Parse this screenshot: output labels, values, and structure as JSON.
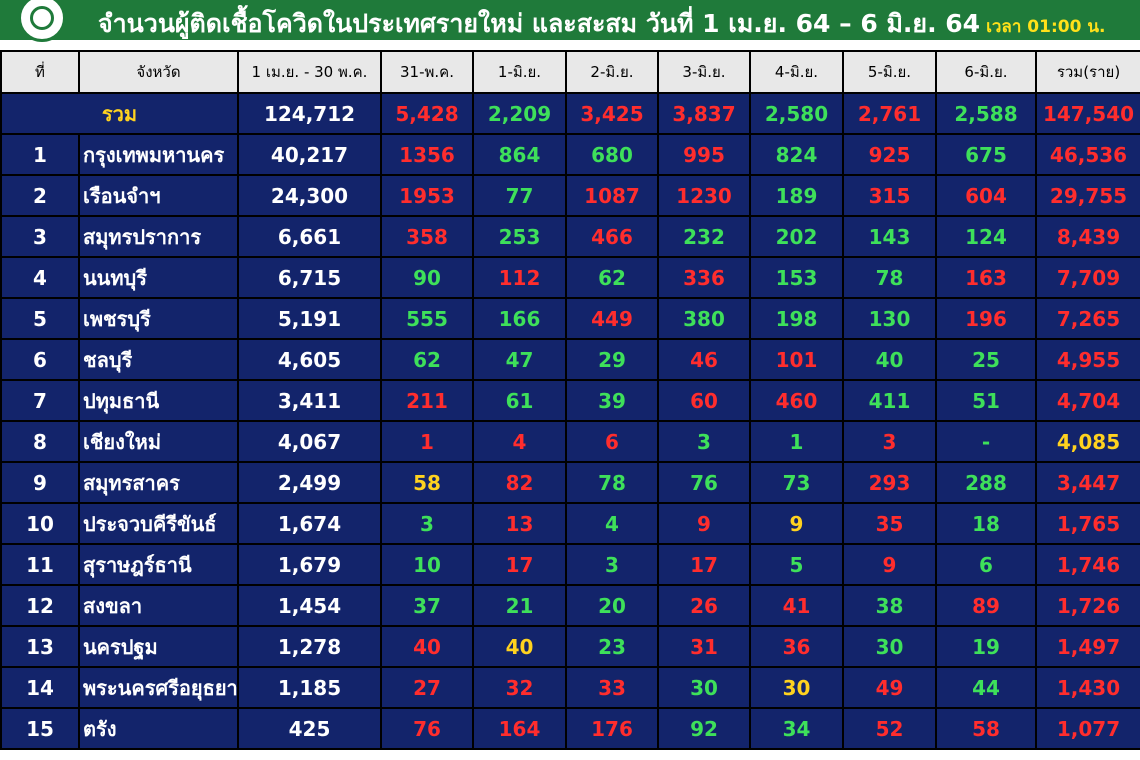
{
  "header": {
    "title": "จำนวนผู้ติดเชื้อโควิดในประเทศรายใหม่ และสะสม วันที่ 1 เม.ย. 64 – 6 มิ.ย. 64",
    "time": "เวลา 01:00 น."
  },
  "table": {
    "columns": [
      "ที่",
      "จังหวัด",
      "1 เม.ย. - 30 พ.ค.",
      "31-พ.ค.",
      "1-มิ.ย.",
      "2-มิ.ย.",
      "3-มิ.ย.",
      "4-มิ.ย.",
      "5-มิ.ย.",
      "6-มิ.ย.",
      "รวม(ราย)"
    ],
    "total": {
      "label": "รวม",
      "cells": [
        "124,712",
        "5,428",
        "2,209",
        "3,425",
        "3,837",
        "2,580",
        "2,761",
        "2,588",
        "147,540"
      ],
      "colors": [
        "red",
        "green",
        "red",
        "red",
        "green",
        "red",
        "green",
        "red"
      ]
    },
    "rows": [
      {
        "no": "1",
        "province": "กรุงเทพมหานคร",
        "cells": [
          "40,217",
          "1356",
          "864",
          "680",
          "995",
          "824",
          "925",
          "675",
          "46,536"
        ],
        "colors": [
          "red",
          "green",
          "green",
          "red",
          "green",
          "red",
          "green",
          "red"
        ]
      },
      {
        "no": "2",
        "province": "เรือนจำฯ",
        "cells": [
          "24,300",
          "1953",
          "77",
          "1087",
          "1230",
          "189",
          "315",
          "604",
          "29,755"
        ],
        "colors": [
          "red",
          "green",
          "red",
          "red",
          "green",
          "red",
          "red",
          "red"
        ]
      },
      {
        "no": "3",
        "province": "สมุทรปราการ",
        "cells": [
          "6,661",
          "358",
          "253",
          "466",
          "232",
          "202",
          "143",
          "124",
          "8,439"
        ],
        "colors": [
          "red",
          "green",
          "red",
          "green",
          "green",
          "green",
          "green",
          "red"
        ]
      },
      {
        "no": "4",
        "province": "นนทบุรี",
        "cells": [
          "6,715",
          "90",
          "112",
          "62",
          "336",
          "153",
          "78",
          "163",
          "7,709"
        ],
        "colors": [
          "green",
          "red",
          "green",
          "red",
          "green",
          "green",
          "red",
          "red"
        ]
      },
      {
        "no": "5",
        "province": "เพชรบุรี",
        "cells": [
          "5,191",
          "555",
          "166",
          "449",
          "380",
          "198",
          "130",
          "196",
          "7,265"
        ],
        "colors": [
          "green",
          "green",
          "red",
          "green",
          "green",
          "green",
          "red",
          "red"
        ]
      },
      {
        "no": "6",
        "province": "ชลบุรี",
        "cells": [
          "4,605",
          "62",
          "47",
          "29",
          "46",
          "101",
          "40",
          "25",
          "4,955"
        ],
        "colors": [
          "green",
          "green",
          "green",
          "red",
          "red",
          "green",
          "green",
          "red"
        ]
      },
      {
        "no": "7",
        "province": "ปทุมธานี",
        "cells": [
          "3,411",
          "211",
          "61",
          "39",
          "60",
          "460",
          "411",
          "51",
          "4,704"
        ],
        "colors": [
          "red",
          "green",
          "green",
          "red",
          "red",
          "green",
          "green",
          "red"
        ]
      },
      {
        "no": "8",
        "province": "เชียงใหม่",
        "cells": [
          "4,067",
          "1",
          "4",
          "6",
          "3",
          "1",
          "3",
          "-",
          "4,085"
        ],
        "colors": [
          "red",
          "red",
          "red",
          "green",
          "green",
          "red",
          "green",
          "yellow"
        ]
      },
      {
        "no": "9",
        "province": "สมุทรสาคร",
        "cells": [
          "2,499",
          "58",
          "82",
          "78",
          "76",
          "73",
          "293",
          "288",
          "3,447"
        ],
        "colors": [
          "yellow",
          "red",
          "green",
          "green",
          "green",
          "red",
          "green",
          "red"
        ]
      },
      {
        "no": "10",
        "province": "ประจวบคีรีขันธ์",
        "cells": [
          "1,674",
          "3",
          "13",
          "4",
          "9",
          "9",
          "35",
          "18",
          "1,765"
        ],
        "colors": [
          "green",
          "red",
          "green",
          "red",
          "yellow",
          "red",
          "green",
          "red"
        ]
      },
      {
        "no": "11",
        "province": "สุราษฎร์ธานี",
        "cells": [
          "1,679",
          "10",
          "17",
          "3",
          "17",
          "5",
          "9",
          "6",
          "1,746"
        ],
        "colors": [
          "green",
          "red",
          "green",
          "red",
          "green",
          "red",
          "green",
          "red"
        ]
      },
      {
        "no": "12",
        "province": "สงขลา",
        "cells": [
          "1,454",
          "37",
          "21",
          "20",
          "26",
          "41",
          "38",
          "89",
          "1,726"
        ],
        "colors": [
          "green",
          "green",
          "green",
          "red",
          "red",
          "green",
          "red",
          "red"
        ]
      },
      {
        "no": "13",
        "province": "นครปฐม",
        "cells": [
          "1,278",
          "40",
          "40",
          "23",
          "31",
          "36",
          "30",
          "19",
          "1,497"
        ],
        "colors": [
          "red",
          "yellow",
          "green",
          "red",
          "red",
          "green",
          "green",
          "red"
        ]
      },
      {
        "no": "14",
        "province": "พระนครศรีอยุธยา",
        "cells": [
          "1,185",
          "27",
          "32",
          "33",
          "30",
          "30",
          "49",
          "44",
          "1,430"
        ],
        "colors": [
          "red",
          "red",
          "red",
          "green",
          "yellow",
          "red",
          "green",
          "red"
        ]
      },
      {
        "no": "15",
        "province": "ตรัง",
        "cells": [
          "425",
          "76",
          "164",
          "176",
          "92",
          "34",
          "52",
          "58",
          "1,077"
        ],
        "colors": [
          "red",
          "red",
          "red",
          "green",
          "green",
          "red",
          "red",
          "red"
        ]
      }
    ]
  }
}
